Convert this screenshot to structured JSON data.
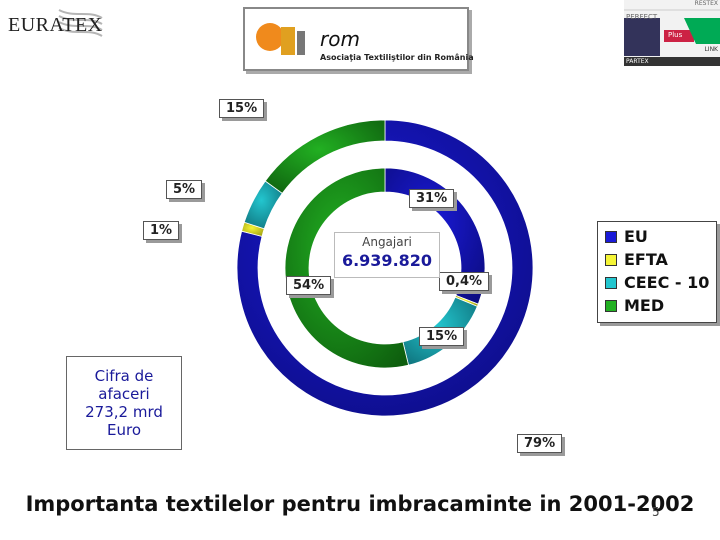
{
  "header": {
    "brand_left": "EURATEX",
    "center_logo_word": "rom",
    "center_logo_tagline": "Asociaţia Textiliştilor din România",
    "right_logo": {
      "top": "PERFECT",
      "corner": "RESTEX",
      "mid": "Plus",
      "side": "LINK",
      "bottom": "PARTEX"
    }
  },
  "chart_data": {
    "type": "donut",
    "series": [
      {
        "name": "Cifra de afaceri 273,2 mrd Euro",
        "ring": "outer",
        "values": [
          79,
          1,
          5,
          15
        ],
        "labels": [
          "79%",
          "1%",
          "5%",
          "15%"
        ]
      },
      {
        "name": "Angajari 6.939.820",
        "ring": "inner",
        "values": [
          31,
          0.4,
          15,
          54
        ],
        "labels": [
          "31%",
          "0,4%",
          "15%",
          "54%"
        ]
      }
    ],
    "categories": [
      "EU",
      "EFTA",
      "CEEC - 10",
      "MED"
    ],
    "colors": [
      "#1a1ad8",
      "#f5f536",
      "#23c6cf",
      "#22b022"
    ],
    "legend_position": "right"
  },
  "center": {
    "label": "Angajari",
    "value": "6.939.820"
  },
  "note": {
    "line1": "Cifra de",
    "line2": "afaceri",
    "line3": "273,2 mrd",
    "line4": "Euro"
  },
  "title": "Importanta textilelor pentru imbracaminte in 2001-2002",
  "page_number": "5"
}
